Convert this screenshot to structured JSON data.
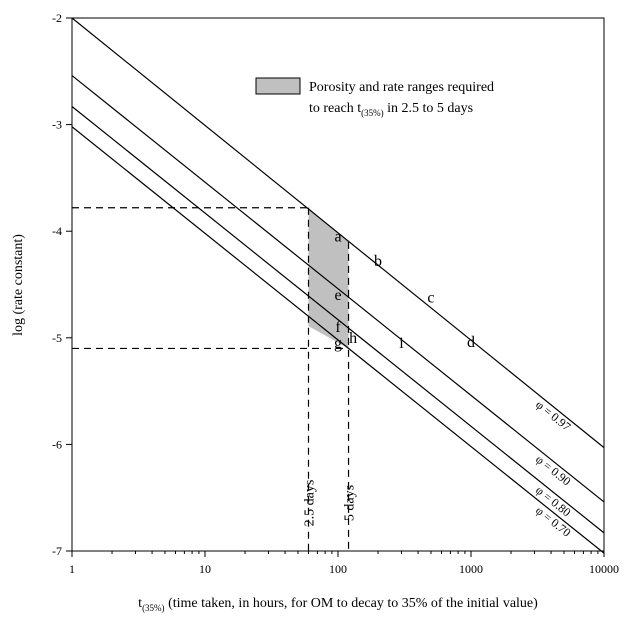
{
  "chart_data": {
    "type": "line",
    "xscale": "log",
    "xlim": [
      1,
      10000
    ],
    "ylim": [
      -7,
      -2
    ],
    "x_ticks": [
      1,
      10,
      100,
      1000,
      10000
    ],
    "x_tick_labels": [
      "1",
      "10",
      "100",
      "1000",
      "10000"
    ],
    "y_ticks": [
      -2,
      -3,
      -4,
      -5,
      -6,
      -7
    ],
    "y_tick_labels": [
      "-2",
      "-3",
      "-4",
      "-5",
      "-6",
      "-7"
    ],
    "xlabel_main": "t",
    "xlabel_sub": "(35%)",
    "xlabel_rest": " (time taken, in hours, for OM to decay to 35% of the initial value)",
    "ylabel": "log (rate constant)",
    "series": [
      {
        "name": "φ = 0.97",
        "x": [
          1,
          10000
        ],
        "y": [
          -2.0,
          -6.03
        ]
      },
      {
        "name": "φ = 0.90",
        "x": [
          1,
          10000
        ],
        "y": [
          -2.54,
          -6.54
        ]
      },
      {
        "name": "φ = 0.80",
        "x": [
          1,
          10000
        ],
        "y": [
          -2.83,
          -6.83
        ]
      },
      {
        "name": "φ = 0.70",
        "x": [
          1,
          10000
        ],
        "y": [
          -3.02,
          -7.02
        ]
      }
    ],
    "shaded_region": [
      [
        60,
        -3.78
      ],
      [
        120,
        -4.1
      ],
      [
        120,
        -5.1
      ],
      [
        60,
        -4.89
      ]
    ],
    "dashed_lines": [
      {
        "x": [
          1,
          60
        ],
        "y": [
          -3.78,
          -3.78
        ]
      },
      {
        "x": [
          1,
          120
        ],
        "y": [
          -5.1,
          -5.1
        ]
      },
      {
        "x": [
          60,
          60
        ],
        "y": [
          -3.78,
          -7
        ]
      },
      {
        "x": [
          120,
          120
        ],
        "y": [
          -4.1,
          -7
        ]
      }
    ],
    "day_labels": [
      {
        "text": "2.5 days",
        "x": 60
      },
      {
        "text": "5 days",
        "x": 120
      }
    ],
    "point_labels": [
      {
        "text": "a",
        "x": 100,
        "y": -4.05
      },
      {
        "text": "b",
        "x": 200,
        "y": -4.28
      },
      {
        "text": "c",
        "x": 500,
        "y": -4.62
      },
      {
        "text": "d",
        "x": 1000,
        "y": -5.04
      },
      {
        "text": "e",
        "x": 100,
        "y": -4.6
      },
      {
        "text": "f",
        "x": 100,
        "y": -4.9
      },
      {
        "text": "g",
        "x": 100,
        "y": -5.05
      },
      {
        "text": "h",
        "x": 130,
        "y": -5.0
      },
      {
        "text": "i",
        "x": 300,
        "y": -5.05
      }
    ],
    "legend": {
      "line1": "Porosity and rate ranges required",
      "line2_pre": "to reach t",
      "line2_sub": "(35%)",
      "line2_post": " in 2.5 to 5 days",
      "fill": "#c0c0c0",
      "placement": "top-right"
    }
  }
}
